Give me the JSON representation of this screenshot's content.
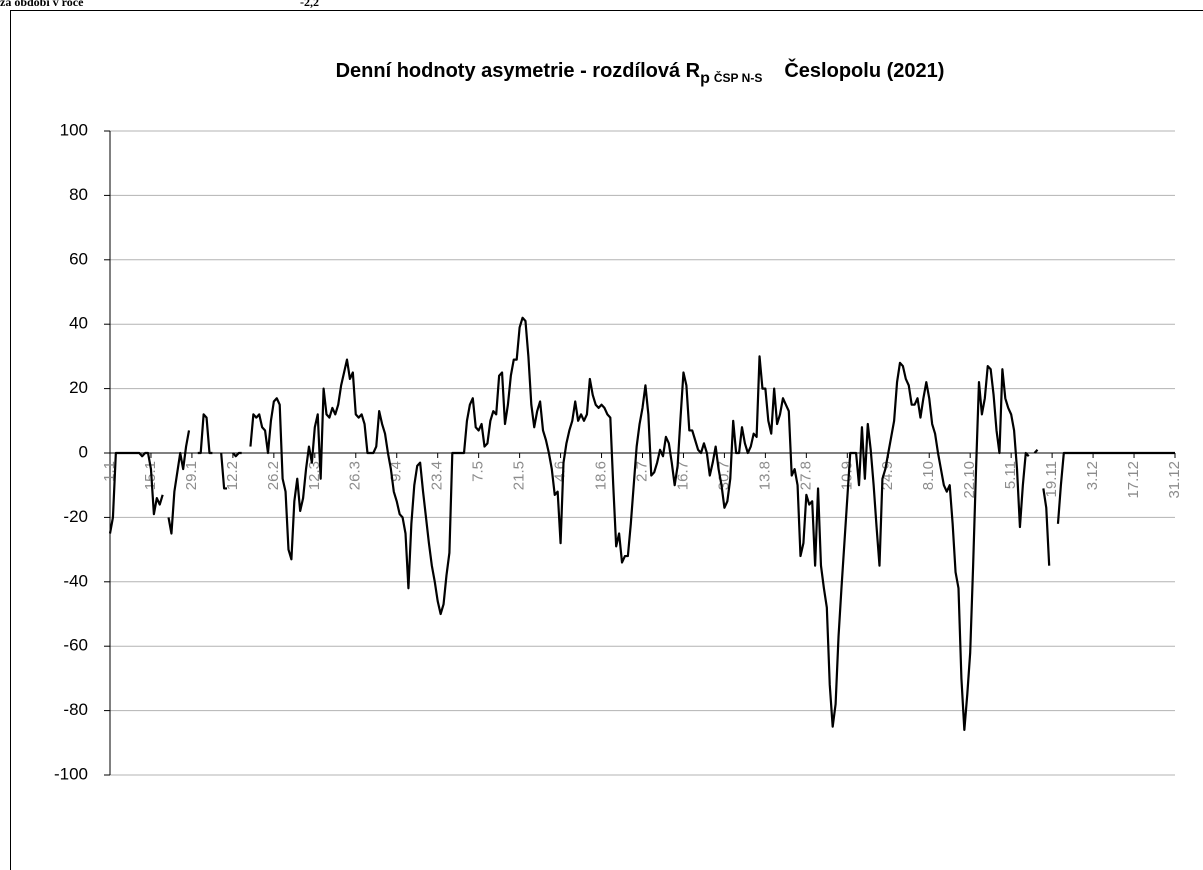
{
  "header": {
    "label": "za období v roce",
    "value": "-2,2"
  },
  "chart_data": {
    "type": "line",
    "title_parts": [
      "Denní hodnoty asymetrie - rozdílová R",
      "p",
      "ČSP N-S",
      "Česlopolu (2021)"
    ],
    "color": "#000000",
    "grid": true,
    "ylim": [
      -100,
      100
    ],
    "yticks": [
      -100,
      -80,
      -60,
      -40,
      -20,
      0,
      20,
      40,
      60,
      80,
      100
    ],
    "categories": [
      "1.1",
      null,
      null,
      null,
      null,
      null,
      null,
      null,
      null,
      null,
      null,
      null,
      null,
      null,
      "15.1",
      null,
      null,
      null,
      null,
      null,
      null,
      null,
      null,
      null,
      null,
      null,
      null,
      null,
      "29.1",
      null,
      null,
      null,
      null,
      null,
      null,
      null,
      null,
      null,
      null,
      null,
      null,
      null,
      "12.2",
      null,
      null,
      null,
      null,
      null,
      null,
      null,
      null,
      null,
      null,
      null,
      null,
      null,
      "26.2",
      null,
      null,
      null,
      null,
      null,
      null,
      null,
      null,
      null,
      null,
      null,
      null,
      null,
      "12.3",
      null,
      null,
      null,
      null,
      null,
      null,
      null,
      null,
      null,
      null,
      null,
      null,
      null,
      "26.3",
      null,
      null,
      null,
      null,
      null,
      null,
      null,
      null,
      null,
      null,
      null,
      null,
      null,
      "9.4",
      null,
      null,
      null,
      null,
      null,
      null,
      null,
      null,
      null,
      null,
      null,
      null,
      null,
      "23.4",
      null,
      null,
      null,
      null,
      null,
      null,
      null,
      null,
      null,
      null,
      null,
      null,
      null,
      "7.5",
      null,
      null,
      null,
      null,
      null,
      null,
      null,
      null,
      null,
      null,
      null,
      null,
      null,
      "21.5",
      null,
      null,
      null,
      null,
      null,
      null,
      null,
      null,
      null,
      null,
      null,
      null,
      null,
      "4.6",
      null,
      null,
      null,
      null,
      null,
      null,
      null,
      null,
      null,
      null,
      null,
      null,
      null,
      "18.6",
      null,
      null,
      null,
      null,
      null,
      null,
      null,
      null,
      null,
      null,
      null,
      null,
      null,
      "2.7",
      null,
      null,
      null,
      null,
      null,
      null,
      null,
      null,
      null,
      null,
      null,
      null,
      null,
      "16.7",
      null,
      null,
      null,
      null,
      null,
      null,
      null,
      null,
      null,
      null,
      null,
      null,
      null,
      "30.7",
      null,
      null,
      null,
      null,
      null,
      null,
      null,
      null,
      null,
      null,
      null,
      null,
      null,
      "13.8",
      null,
      null,
      null,
      null,
      null,
      null,
      null,
      null,
      null,
      null,
      null,
      null,
      null,
      "27.8",
      null,
      null,
      null,
      null,
      null,
      null,
      null,
      null,
      null,
      null,
      null,
      null,
      null,
      "10.9",
      null,
      null,
      null,
      null,
      null,
      null,
      null,
      null,
      null,
      null,
      null,
      null,
      null,
      "24.9",
      null,
      null,
      null,
      null,
      null,
      null,
      null,
      null,
      null,
      null,
      null,
      null,
      null,
      "8.10",
      null,
      null,
      null,
      null,
      null,
      null,
      null,
      null,
      null,
      null,
      null,
      null,
      null,
      "22.10",
      null,
      null,
      null,
      null,
      null,
      null,
      null,
      null,
      null,
      null,
      null,
      null,
      null,
      "5.11",
      null,
      null,
      null,
      null,
      null,
      null,
      null,
      null,
      null,
      null,
      null,
      null,
      null,
      "19.11",
      null,
      null,
      null,
      null,
      null,
      null,
      null,
      null,
      null,
      null,
      null,
      null,
      null,
      "3.12",
      null,
      null,
      null,
      null,
      null,
      null,
      null,
      null,
      null,
      null,
      null,
      null,
      null,
      "17.12",
      null,
      null,
      null,
      null,
      null,
      null,
      null,
      null,
      null,
      null,
      null,
      null,
      null,
      "31.12"
    ],
    "values": [
      -25,
      -20,
      0,
      0,
      0,
      0,
      0,
      0,
      0,
      0,
      0,
      -1,
      0,
      0,
      -5,
      -19,
      -14,
      -16,
      -13,
      null,
      -20,
      -25,
      -12,
      -6,
      0,
      -5,
      2,
      7,
      null,
      null,
      0,
      0,
      12,
      11,
      0,
      0,
      null,
      null,
      0,
      -11,
      -11,
      null,
      0,
      -1,
      0,
      0,
      null,
      null,
      2,
      12,
      11,
      12,
      8,
      7,
      0,
      10,
      16,
      17,
      15,
      -8,
      -12,
      -30,
      -33,
      -15,
      -8,
      -18,
      -14,
      -5,
      2,
      -3,
      8,
      12,
      -8,
      20,
      12,
      11,
      14,
      12,
      15,
      21,
      25,
      29,
      23,
      25,
      12,
      11,
      12,
      9,
      0,
      0,
      0,
      2,
      13,
      9,
      6,
      0,
      -5,
      -12,
      -15,
      -19,
      -20,
      -25,
      -42,
      -22,
      -10,
      -4,
      -3,
      -12,
      -20,
      -28,
      -35,
      -40,
      -46,
      -50,
      -47,
      -38,
      -31,
      0,
      0,
      0,
      0,
      0,
      10,
      15,
      17,
      8,
      7,
      9,
      2,
      3,
      10,
      13,
      12,
      24,
      25,
      9,
      15,
      24,
      29,
      29,
      39,
      42,
      41,
      30,
      15,
      8,
      13,
      16,
      7,
      4,
      0,
      -5,
      -13,
      -12,
      -28,
      -3,
      3,
      7,
      10,
      16,
      10,
      12,
      10,
      12,
      23,
      18,
      15,
      14,
      15,
      14,
      12,
      11,
      -10,
      -29,
      -25,
      -34,
      -32,
      -32,
      -22,
      -10,
      2,
      9,
      14,
      21,
      12,
      -7,
      -6,
      -3,
      1,
      -1,
      5,
      3,
      -3,
      -10,
      -4,
      11,
      25,
      21,
      7,
      7,
      4,
      1,
      0,
      3,
      0,
      -7,
      -3,
      2,
      -5,
      -10,
      -17,
      -15,
      -8,
      10,
      0,
      0,
      8,
      3,
      0,
      2,
      6,
      5,
      30,
      20,
      20,
      10,
      6,
      20,
      9,
      12,
      17,
      15,
      13,
      -7,
      -5,
      -10,
      -32,
      -28,
      -13,
      -16,
      -15,
      -35,
      -11,
      -35,
      -42,
      -48,
      -72,
      -85,
      -78,
      -57,
      -42,
      -28,
      -14,
      0,
      0,
      0,
      -10,
      8,
      -8,
      9,
      1,
      -10,
      -23,
      -35,
      -8,
      -5,
      0,
      5,
      10,
      22,
      28,
      27,
      23,
      21,
      15,
      15,
      17,
      11,
      17,
      22,
      17,
      9,
      6,
      0,
      -5,
      -10,
      -12,
      -10,
      -22,
      -37,
      -42,
      -70,
      -86,
      -75,
      -62,
      -35,
      -5,
      22,
      12,
      17,
      27,
      26,
      18,
      7,
      0,
      26,
      17,
      14,
      12,
      7,
      -5,
      -23,
      -10,
      0,
      -1,
      null,
      0,
      1,
      null,
      -11,
      -17,
      -35,
      null,
      null,
      -22,
      -10,
      0,
      0,
      0,
      0,
      0,
      0,
      0,
      0,
      0,
      0,
      0,
      0,
      0,
      0,
      0,
      0,
      0,
      0,
      0,
      0,
      0,
      0,
      0,
      0,
      0,
      0,
      0,
      0,
      0,
      0,
      0,
      0,
      0,
      0,
      0,
      0,
      0,
      0,
      0
    ]
  }
}
